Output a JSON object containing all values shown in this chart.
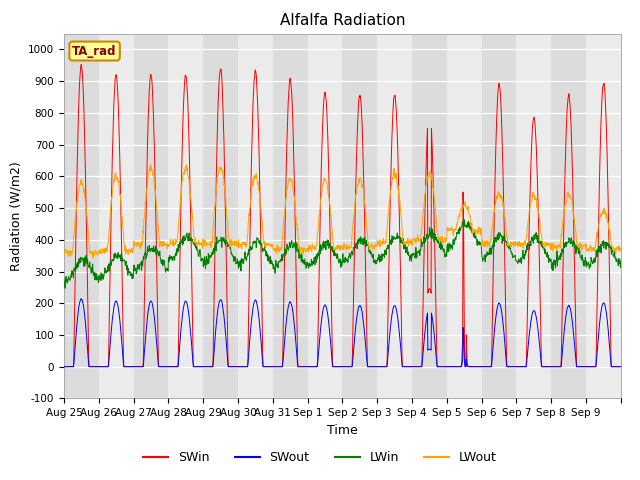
{
  "title": "Alfalfa Radiation",
  "xlabel": "Time",
  "ylabel": "Radiation (W/m2)",
  "ylim": [
    -100,
    1050
  ],
  "yticks": [
    -100,
    0,
    100,
    200,
    300,
    400,
    500,
    600,
    700,
    800,
    900,
    1000
  ],
  "legend_label": "TA_rad",
  "series": [
    "SWin",
    "SWout",
    "LWin",
    "LWout"
  ],
  "colors": [
    "red",
    "blue",
    "green",
    "orange"
  ],
  "tick_labels": [
    "Aug 25",
    "Aug 26",
    "Aug 27",
    "Aug 28",
    "Aug 29",
    "Aug 30",
    "Aug 31",
    "Sep 1",
    "Sep 2",
    "Sep 3",
    "Sep 4",
    "Sep 5",
    "Sep 6",
    "Sep 7",
    "Sep 8",
    "Sep 9"
  ],
  "band_colors": [
    "#dcdcdc",
    "#ebebeb"
  ],
  "grid_color": "#ffffff",
  "title_fontsize": 11,
  "axis_label_fontsize": 9,
  "tick_fontsize": 7.5,
  "legend_fontsize": 9
}
